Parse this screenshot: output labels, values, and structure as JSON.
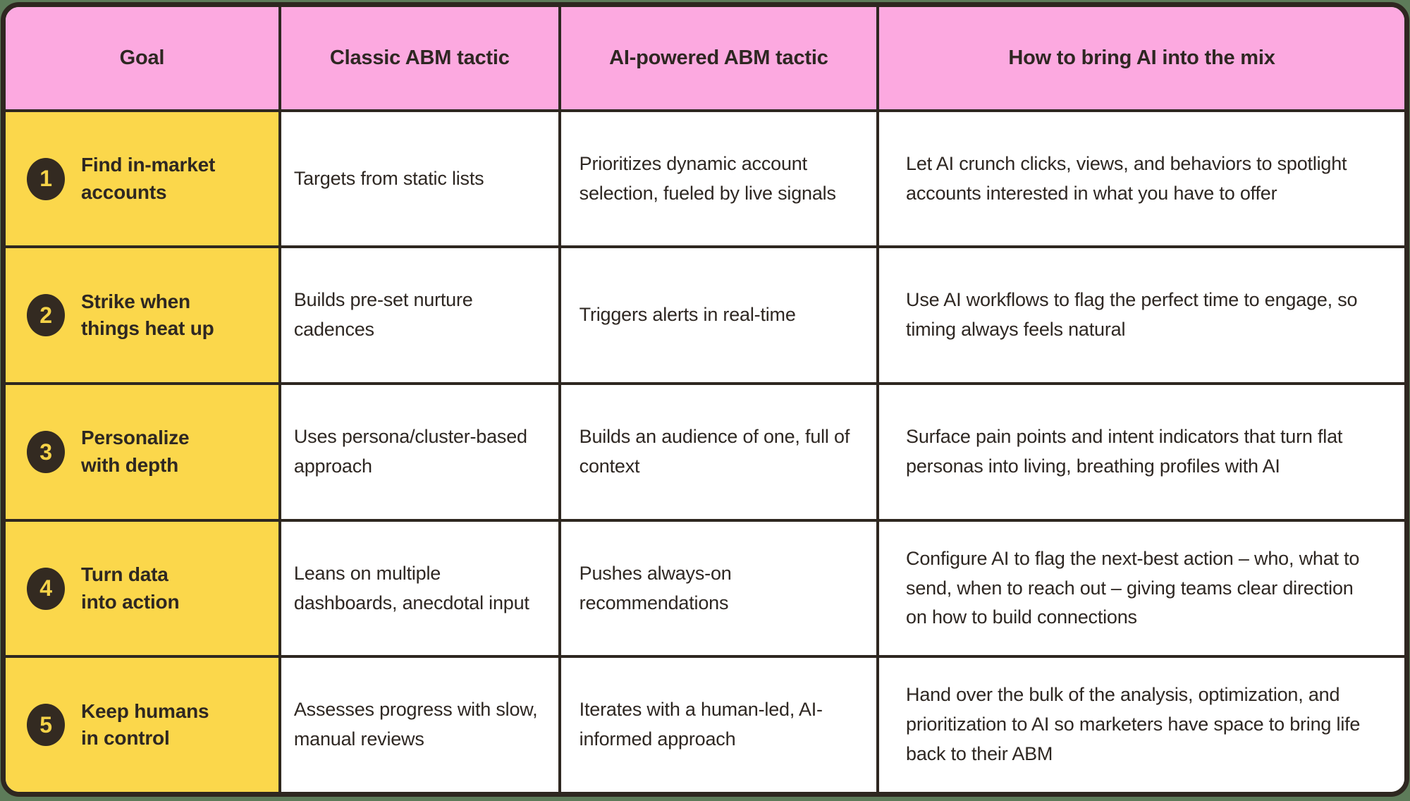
{
  "colors": {
    "page_background": "#5d7b59",
    "header_background": "#fca9e0",
    "goal_column_background": "#fbd74b",
    "border": "#2e2720",
    "text": "#2e2722",
    "circle_background": "#332a21",
    "circle_number": "#f6d348"
  },
  "chart_data": {
    "type": "table",
    "columns": [
      "Goal",
      "Classic ABM tactic",
      "AI-powered ABM tactic",
      "How to bring AI into the mix"
    ],
    "rows": [
      {
        "number": "1",
        "goal_line1": "Find in-market",
        "goal_line2": "accounts",
        "classic": "Targets from static lists",
        "ai": "Prioritizes dynamic account selection, fueled by live signals",
        "how": "Let AI crunch clicks, views, and behaviors to spotlight accounts interested in what you have to offer"
      },
      {
        "number": "2",
        "goal_line1": "Strike when",
        "goal_line2": "things heat up",
        "classic": "Builds pre-set nurture cadences",
        "ai": "Triggers alerts in real-time",
        "how": "Use AI workflows to flag the perfect time to engage, so timing always feels natural"
      },
      {
        "number": "3",
        "goal_line1": "Personalize",
        "goal_line2": "with depth",
        "classic": "Uses persona/cluster-based approach",
        "ai": "Builds an audience of one, full of context",
        "how": "Surface pain points and intent indicators that turn flat personas into living, breathing profiles with AI"
      },
      {
        "number": "4",
        "goal_line1": "Turn data",
        "goal_line2": "into action",
        "classic": "Leans on multiple dashboards, anecdotal input",
        "ai": "Pushes always-on recommendations",
        "how": "Configure AI to flag the next-best action – who, what to send, when to reach out – giving teams clear direction on how to build connections"
      },
      {
        "number": "5",
        "goal_line1": "Keep humans",
        "goal_line2": "in control",
        "classic": "Assesses progress with slow, manual reviews",
        "ai": "Iterates with a human-led, AI-informed approach",
        "how": "Hand over the bulk of the analysis, optimization, and prioritization to AI so marketers have space to bring life back to their ABM"
      }
    ]
  }
}
